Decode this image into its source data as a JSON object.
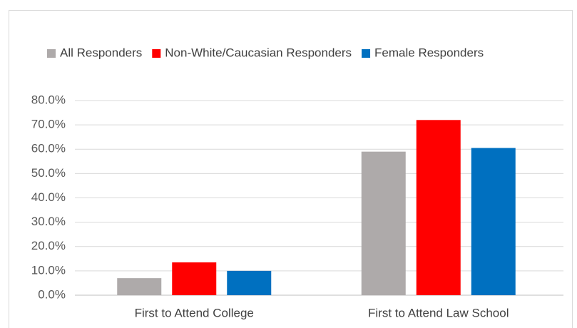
{
  "chart_data": {
    "type": "bar",
    "categories": [
      "First to Attend College",
      "First to Attend Law School"
    ],
    "series": [
      {
        "name": "All Responders",
        "color": "#aeaaaa",
        "values": [
          7,
          59
        ]
      },
      {
        "name": "Non-White/Caucasian Responders",
        "color": "#ff0000",
        "values": [
          13.5,
          72
        ]
      },
      {
        "name": "Female Responders",
        "color": "#0070c0",
        "values": [
          10,
          60.5
        ]
      }
    ],
    "ylim": [
      0,
      80
    ],
    "yticks": [
      {
        "value": 0,
        "label": "0.0%"
      },
      {
        "value": 10,
        "label": "10.0%"
      },
      {
        "value": 20,
        "label": "20.0%"
      },
      {
        "value": 30,
        "label": "30.0%"
      },
      {
        "value": 40,
        "label": "40.0%"
      },
      {
        "value": 50,
        "label": "50.0%"
      },
      {
        "value": 60,
        "label": "60.0%"
      },
      {
        "value": 70,
        "label": "70.0%"
      },
      {
        "value": 80,
        "label": "80.0%"
      }
    ],
    "grid": true,
    "legend": "top"
  }
}
